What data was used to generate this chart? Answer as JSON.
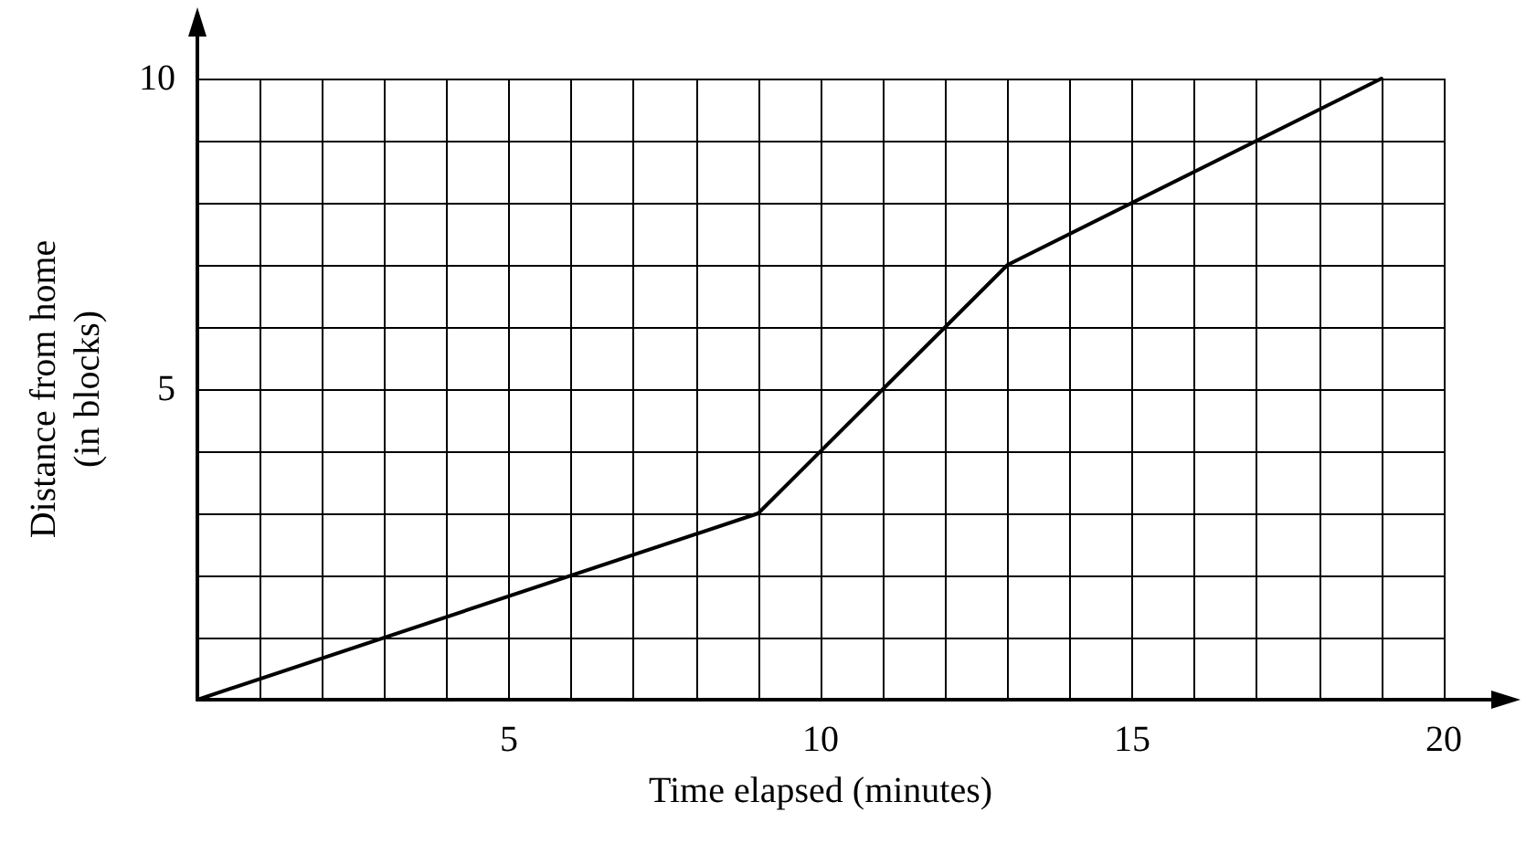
{
  "chart_data": {
    "type": "line",
    "xlabel": "Time elapsed (minutes)",
    "ylabel": "Distance from home\n(in blocks)",
    "x": [
      0,
      9,
      13,
      19
    ],
    "series": [
      {
        "color": "#000000",
        "values": [
          0,
          3,
          7,
          10
        ]
      }
    ],
    "xlim": [
      0,
      20
    ],
    "ylim": [
      0,
      10
    ],
    "xticks": [
      {
        "value": 0,
        "label": null
      },
      {
        "value": 1,
        "label": null
      },
      {
        "value": 2,
        "label": null
      },
      {
        "value": 3,
        "label": null
      },
      {
        "value": 4,
        "label": null
      },
      5,
      {
        "value": 6,
        "label": null
      },
      {
        "value": 7,
        "label": null
      },
      {
        "value": 8,
        "label": null
      },
      {
        "value": 9,
        "label": null
      },
      10,
      {
        "value": 11,
        "label": null
      },
      {
        "value": 12,
        "label": null
      },
      {
        "value": 13,
        "label": null
      },
      {
        "value": 14,
        "label": null
      },
      15,
      {
        "value": 16,
        "label": null
      },
      {
        "value": 17,
        "label": null
      },
      {
        "value": 18,
        "label": null
      },
      {
        "value": 19,
        "label": null
      },
      20
    ],
    "yticks": [
      {
        "value": 0,
        "label": null
      },
      {
        "value": 1,
        "label": null
      },
      {
        "value": 2,
        "label": null
      },
      {
        "value": 3,
        "label": null
      },
      {
        "value": 4,
        "label": null
      },
      5,
      {
        "value": 6,
        "label": null
      },
      {
        "value": 7,
        "label": null
      },
      {
        "value": 8,
        "label": null
      },
      {
        "value": 9,
        "label": null
      },
      10
    ],
    "grid": true,
    "marker": "none",
    "line_style": "solid"
  }
}
